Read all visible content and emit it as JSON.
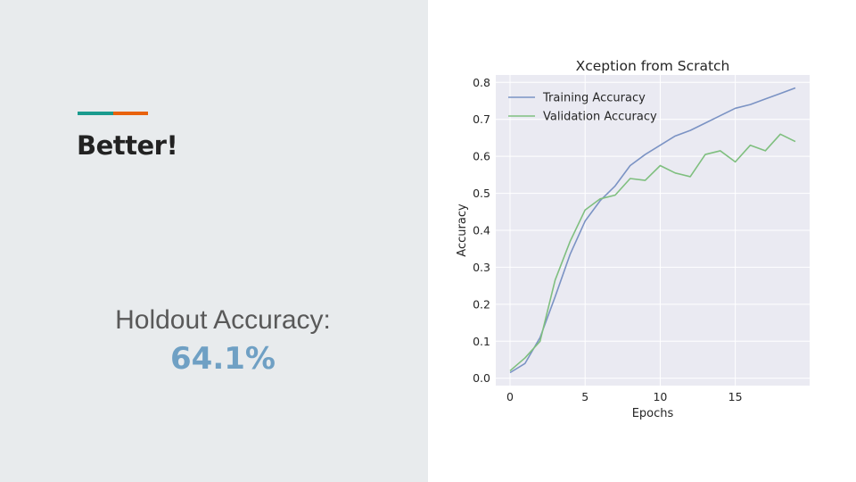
{
  "slide": {
    "title": "Better!",
    "metric_label": "Holdout Accuracy:",
    "metric_value": "64.1%",
    "accent_colors": [
      "#1a9b8e",
      "#e8620d"
    ],
    "metric_color": "#6fa0c4"
  },
  "chart_data": {
    "type": "line",
    "title": "Xception from Scratch",
    "xlabel": "Epochs",
    "ylabel": "Accuracy",
    "xlim": [
      -0.95,
      19.95
    ],
    "ylim": [
      -0.02,
      0.82
    ],
    "xticks": [
      0,
      5,
      10,
      15
    ],
    "yticks": [
      0.0,
      0.1,
      0.2,
      0.3,
      0.4,
      0.5,
      0.6,
      0.7,
      0.8
    ],
    "grid": true,
    "legend": "top-left",
    "x": [
      0,
      1,
      2,
      3,
      4,
      5,
      6,
      7,
      8,
      9,
      10,
      11,
      12,
      13,
      14,
      15,
      16,
      17,
      18,
      19
    ],
    "series": [
      {
        "name": "Training Accuracy",
        "color": "#7b93c4",
        "values": [
          0.015,
          0.04,
          0.11,
          0.22,
          0.335,
          0.425,
          0.48,
          0.52,
          0.575,
          0.605,
          0.63,
          0.655,
          0.67,
          0.69,
          0.71,
          0.73,
          0.74,
          0.755,
          0.77,
          0.785
        ]
      },
      {
        "name": "Validation Accuracy",
        "color": "#7fbf7f",
        "values": [
          0.02,
          0.055,
          0.1,
          0.265,
          0.37,
          0.455,
          0.485,
          0.495,
          0.54,
          0.535,
          0.575,
          0.555,
          0.545,
          0.605,
          0.615,
          0.585,
          0.63,
          0.615,
          0.66,
          0.64
        ]
      }
    ]
  }
}
